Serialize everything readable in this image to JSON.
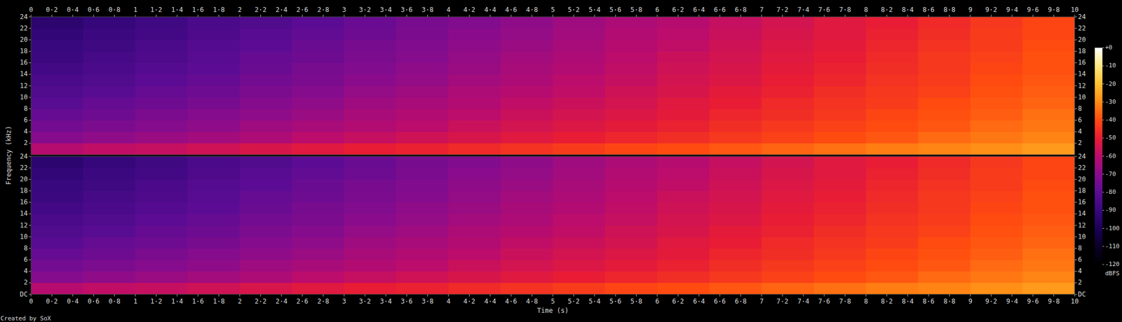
{
  "chart_data": {
    "type": "heatmap",
    "xlabel": "Time (s)",
    "ylabel": "Frequency (kHz)",
    "footer": "Created by SoX",
    "xlim": [
      0,
      10
    ],
    "xticks": [
      0,
      {
        "value": 0.2,
        "label": "0·2"
      },
      {
        "value": 0.4,
        "label": "0·4"
      },
      {
        "value": 0.6,
        "label": "0·6"
      },
      {
        "value": 0.8,
        "label": "0·8"
      },
      1,
      {
        "value": 1.2,
        "label": "1·2"
      },
      {
        "value": 1.4,
        "label": "1·4"
      },
      {
        "value": 1.6,
        "label": "1·6"
      },
      {
        "value": 1.8,
        "label": "1·8"
      },
      2,
      {
        "value": 2.2,
        "label": "2·2"
      },
      {
        "value": 2.4,
        "label": "2·4"
      },
      {
        "value": 2.6,
        "label": "2·6"
      },
      {
        "value": 2.8,
        "label": "2·8"
      },
      3,
      {
        "value": 3.2,
        "label": "3·2"
      },
      {
        "value": 3.4,
        "label": "3·4"
      },
      {
        "value": 3.6,
        "label": "3·6"
      },
      {
        "value": 3.8,
        "label": "3·8"
      },
      4,
      {
        "value": 4.2,
        "label": "4·2"
      },
      {
        "value": 4.4,
        "label": "4·4"
      },
      {
        "value": 4.6,
        "label": "4·6"
      },
      {
        "value": 4.8,
        "label": "4·8"
      },
      5,
      {
        "value": 5.2,
        "label": "5·2"
      },
      {
        "value": 5.4,
        "label": "5·4"
      },
      {
        "value": 5.6,
        "label": "5·6"
      },
      {
        "value": 5.8,
        "label": "5·8"
      },
      6,
      {
        "value": 6.2,
        "label": "6·2"
      },
      {
        "value": 6.4,
        "label": "6·4"
      },
      {
        "value": 6.6,
        "label": "6·6"
      },
      {
        "value": 6.8,
        "label": "6·8"
      },
      7,
      {
        "value": 7.2,
        "label": "7·2"
      },
      {
        "value": 7.4,
        "label": "7·4"
      },
      {
        "value": 7.6,
        "label": "7·6"
      },
      {
        "value": 7.8,
        "label": "7·8"
      },
      8,
      {
        "value": 8.2,
        "label": "8·2"
      },
      {
        "value": 8.4,
        "label": "8·4"
      },
      {
        "value": 8.6,
        "label": "8·6"
      },
      {
        "value": 8.8,
        "label": "8·8"
      },
      9,
      {
        "value": 9.2,
        "label": "9·2"
      },
      {
        "value": 9.4,
        "label": "9·4"
      },
      {
        "value": 9.6,
        "label": "9·6"
      },
      {
        "value": 9.8,
        "label": "9·8"
      },
      10
    ],
    "x": [
      0.25,
      0.75,
      1.25,
      1.75,
      2.25,
      2.75,
      3.25,
      3.75,
      4.25,
      4.75,
      5.25,
      5.75,
      6.25,
      6.75,
      7.25,
      7.75,
      8.25,
      8.75,
      9.25,
      9.75
    ],
    "y": [
      1,
      3,
      5,
      7,
      9,
      11,
      13,
      15,
      17,
      19,
      21,
      23
    ],
    "colorbar": {
      "range": [
        -120,
        0
      ],
      "ticks": [
        {
          "value": 0,
          "label": "+0"
        },
        -10,
        -20,
        -30,
        -40,
        -50,
        -60,
        -70,
        -80,
        -90,
        -100,
        -110,
        -120
      ],
      "label": "dBFS"
    },
    "panels": [
      {
        "ylim": [
          0,
          24
        ],
        "yticks": [
          2,
          4,
          6,
          8,
          10,
          12,
          14,
          16,
          18,
          20,
          22,
          24
        ],
        "cells": [
          [
            -61,
            -59,
            -58,
            -56,
            -54,
            -52,
            -50,
            -49,
            -47,
            -45,
            -43,
            -41,
            -40,
            -38,
            -36,
            -34,
            -32,
            -31,
            -29,
            -27
          ],
          [
            -71,
            -69,
            -67,
            -65,
            -63,
            -60,
            -58,
            -56,
            -54,
            -52,
            -50,
            -48,
            -46,
            -44,
            -42,
            -40,
            -38,
            -35,
            -33,
            -31
          ],
          [
            -75,
            -73,
            -71,
            -69,
            -66,
            -64,
            -62,
            -60,
            -57,
            -55,
            -53,
            -51,
            -49,
            -46,
            -44,
            -42,
            -40,
            -38,
            -35,
            -33
          ],
          [
            -78,
            -76,
            -73,
            -71,
            -69,
            -67,
            -64,
            -62,
            -60,
            -57,
            -55,
            -53,
            -51,
            -48,
            -46,
            -44,
            -41,
            -39,
            -37,
            -34
          ],
          [
            -81,
            -78,
            -76,
            -74,
            -71,
            -69,
            -66,
            -64,
            -62,
            -59,
            -57,
            -55,
            -52,
            -50,
            -47,
            -45,
            -43,
            -40,
            -38,
            -36
          ],
          [
            -83,
            -81,
            -78,
            -76,
            -73,
            -71,
            -68,
            -66,
            -63,
            -61,
            -59,
            -56,
            -54,
            -51,
            -49,
            -46,
            -44,
            -42,
            -39,
            -37
          ],
          [
            -85,
            -83,
            -80,
            -78,
            -75,
            -73,
            -70,
            -68,
            -65,
            -63,
            -60,
            -58,
            -55,
            -53,
            -50,
            -48,
            -45,
            -43,
            -40,
            -38
          ],
          [
            -87,
            -85,
            -82,
            -80,
            -77,
            -74,
            -72,
            -69,
            -67,
            -64,
            -62,
            -59,
            -56,
            -54,
            -51,
            -49,
            -46,
            -44,
            -41,
            -39
          ],
          [
            -89,
            -86,
            -84,
            -81,
            -78,
            -76,
            -73,
            -71,
            -68,
            -65,
            -63,
            -60,
            -57,
            -55,
            -52,
            -50,
            -47,
            -44,
            -42,
            -39
          ],
          [
            -90,
            -88,
            -85,
            -82,
            -80,
            -77,
            -74,
            -72,
            -69,
            -67,
            -64,
            -61,
            -59,
            -56,
            -53,
            -51,
            -48,
            -45,
            -43,
            -40
          ],
          [
            -92,
            -89,
            -87,
            -84,
            -81,
            -79,
            -76,
            -73,
            -70,
            -68,
            -65,
            -62,
            -60,
            -57,
            -54,
            -52,
            -49,
            -46,
            -43,
            -41
          ],
          [
            -94,
            -91,
            -88,
            -85,
            -83,
            -80,
            -77,
            -74,
            -72,
            -69,
            -66,
            -63,
            -61,
            -58,
            -55,
            -52,
            -50,
            -47,
            -44,
            -41
          ]
        ]
      },
      {
        "ylim": [
          0,
          24
        ],
        "yticks": [
          {
            "value": 0,
            "label": "DC"
          },
          2,
          4,
          6,
          8,
          10,
          12,
          14,
          16,
          18,
          20,
          22,
          24
        ],
        "cells": [
          [
            -61,
            -59,
            -58,
            -56,
            -54,
            -52,
            -50,
            -49,
            -47,
            -45,
            -43,
            -41,
            -40,
            -38,
            -36,
            -34,
            -32,
            -31,
            -29,
            -27
          ],
          [
            -71,
            -69,
            -67,
            -65,
            -63,
            -60,
            -58,
            -56,
            -54,
            -52,
            -50,
            -48,
            -46,
            -44,
            -42,
            -40,
            -38,
            -35,
            -33,
            -31
          ],
          [
            -75,
            -73,
            -71,
            -69,
            -66,
            -64,
            -62,
            -60,
            -57,
            -55,
            -53,
            -51,
            -49,
            -46,
            -44,
            -42,
            -40,
            -38,
            -35,
            -33
          ],
          [
            -78,
            -76,
            -73,
            -71,
            -69,
            -67,
            -64,
            -62,
            -60,
            -57,
            -55,
            -53,
            -51,
            -48,
            -46,
            -44,
            -41,
            -39,
            -37,
            -34
          ],
          [
            -81,
            -78,
            -76,
            -74,
            -71,
            -69,
            -66,
            -64,
            -62,
            -59,
            -57,
            -55,
            -52,
            -50,
            -47,
            -45,
            -43,
            -40,
            -38,
            -36
          ],
          [
            -83,
            -81,
            -78,
            -76,
            -73,
            -71,
            -68,
            -66,
            -63,
            -61,
            -59,
            -56,
            -54,
            -51,
            -49,
            -46,
            -44,
            -42,
            -39,
            -37
          ],
          [
            -85,
            -83,
            -80,
            -78,
            -75,
            -73,
            -70,
            -68,
            -65,
            -63,
            -60,
            -58,
            -55,
            -53,
            -50,
            -48,
            -45,
            -43,
            -40,
            -38
          ],
          [
            -87,
            -85,
            -82,
            -80,
            -77,
            -74,
            -72,
            -69,
            -67,
            -64,
            -62,
            -59,
            -56,
            -54,
            -51,
            -49,
            -46,
            -44,
            -41,
            -39
          ],
          [
            -89,
            -86,
            -84,
            -81,
            -78,
            -76,
            -73,
            -71,
            -68,
            -65,
            -63,
            -60,
            -57,
            -55,
            -52,
            -50,
            -47,
            -44,
            -42,
            -39
          ],
          [
            -90,
            -88,
            -85,
            -82,
            -80,
            -77,
            -74,
            -72,
            -69,
            -67,
            -64,
            -61,
            -59,
            -56,
            -53,
            -51,
            -48,
            -45,
            -43,
            -40
          ],
          [
            -92,
            -89,
            -87,
            -84,
            -81,
            -79,
            -76,
            -73,
            -70,
            -68,
            -65,
            -62,
            -60,
            -57,
            -54,
            -52,
            -49,
            -46,
            -43,
            -41
          ],
          [
            -94,
            -91,
            -88,
            -85,
            -83,
            -80,
            -77,
            -74,
            -72,
            -69,
            -66,
            -63,
            -61,
            -58,
            -55,
            -52,
            -50,
            -47,
            -44,
            -41
          ]
        ]
      }
    ]
  }
}
